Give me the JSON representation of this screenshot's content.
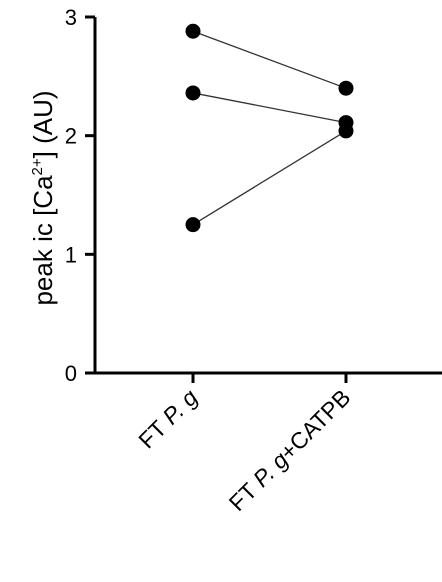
{
  "chart_data": {
    "type": "line",
    "categories": [
      "FT P. g",
      "FT P. g+CATPB"
    ],
    "category_labels": [
      {
        "before": "FT ",
        "italic": "P. g",
        "after": ""
      },
      {
        "before": "FT ",
        "italic": "P. g",
        "after": "+CATPB"
      }
    ],
    "series": [
      {
        "values": [
          2.88,
          2.4
        ]
      },
      {
        "values": [
          2.36,
          2.11
        ]
      },
      {
        "values": [
          1.25,
          2.04
        ]
      }
    ],
    "ylabel": {
      "prefix": "peak ic [Ca",
      "superscript": "2+",
      "suffix": "] (AU)"
    },
    "xlabel": "",
    "ylim": [
      0,
      3
    ],
    "yticks": [
      0,
      1,
      2,
      3
    ],
    "grid": false,
    "marker": "filled-circle",
    "colors": {
      "line": "#333333",
      "marker": "#000000",
      "axis": "#000000"
    }
  }
}
